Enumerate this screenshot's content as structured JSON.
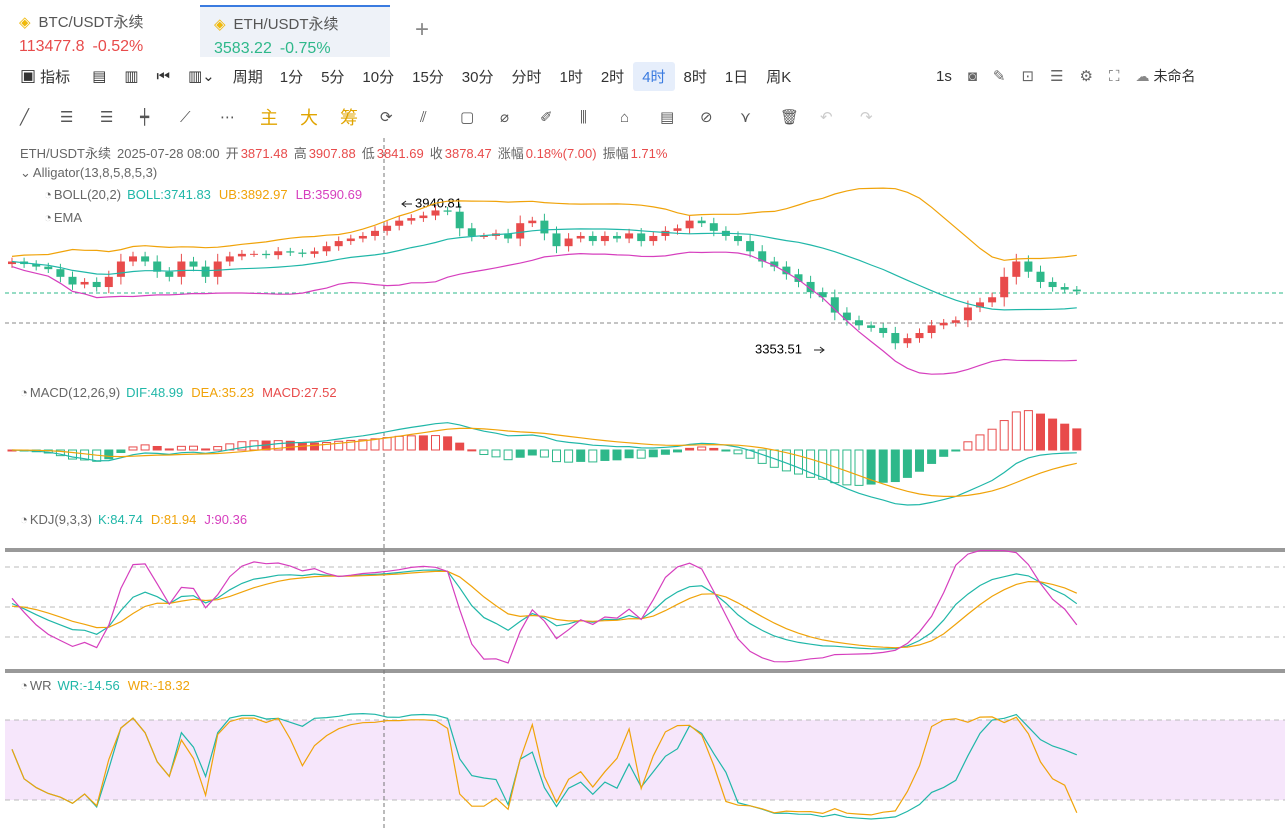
{
  "tabs": [
    {
      "symbol": "BTC/USDT永续",
      "price": 113477.8,
      "change": "-0.52%"
    },
    {
      "symbol": "ETH/USDT永续",
      "price": 3583.22,
      "change": "-0.75%"
    }
  ],
  "toolbar": {
    "indicator": "指标",
    "period": "周期",
    "intervals": [
      "1分",
      "5分",
      "10分",
      "15分",
      "30分",
      "分时",
      "1时",
      "2时",
      "4时",
      "8时",
      "1日",
      "周K"
    ],
    "active": "4时",
    "refresh": "1s",
    "layout_name": "未命名"
  },
  "draw_tools": {
    "main": "主",
    "big": "大",
    "chips": "筹"
  },
  "info": {
    "symbol": "ETH/USDT永续",
    "time": "2025-07-28 08:00",
    "fields": [
      {
        "label": "开",
        "value": 3871.48
      },
      {
        "label": "高",
        "value": 3907.88
      },
      {
        "label": "低",
        "value": 3841.69
      },
      {
        "label": "收",
        "value": 3878.47
      },
      {
        "label": "涨幅",
        "value": "0.18%(7.00)"
      },
      {
        "label": "振幅",
        "value": "1.71%"
      }
    ]
  },
  "indicators": [
    {
      "name": "Alligator(13,8,5,8,5,3)",
      "fields": []
    },
    {
      "name": "BOLL(20,2)",
      "fields": [
        {
          "label": "BOLL:",
          "value": 3741.83,
          "color": "#20b7a8"
        },
        {
          "label": "UB:",
          "value": 3892.97,
          "color": "#f0a30a"
        },
        {
          "label": "LB:",
          "value": 3590.69,
          "color": "#d63fbe"
        }
      ]
    },
    {
      "name": "EMA",
      "fields": []
    },
    {
      "name": "MACD(12,26,9)",
      "fields": [
        {
          "label": "DIF:",
          "value": 48.99,
          "color": "#20b7a8"
        },
        {
          "label": "DEA:",
          "value": 35.23,
          "color": "#f0a30a"
        },
        {
          "label": "MACD:",
          "value": 27.52,
          "color": "#e84b4b"
        }
      ]
    },
    {
      "name": "KDJ(9,3,3)",
      "fields": [
        {
          "label": "K:",
          "value": 84.74,
          "color": "#20b7a8"
        },
        {
          "label": "D:",
          "value": 81.94,
          "color": "#f0a30a"
        },
        {
          "label": "J:",
          "value": 90.36,
          "color": "#d63fbe"
        }
      ]
    },
    {
      "name": "WR",
      "fields": [
        {
          "label": "WR:",
          "value": -14.56,
          "color": "#20b7a8"
        },
        {
          "label": "WR:",
          "value": -18.32,
          "color": "#f0a30a"
        }
      ]
    }
  ],
  "annotations": {
    "high": 3940.81,
    "low": 3353.51
  },
  "candles": {
    "up_color": "#e84b4b",
    "down_color": "#2eb88a",
    "closes": [
      3700,
      3690,
      3680,
      3670,
      3640,
      3610,
      3620,
      3600,
      3640,
      3700,
      3720,
      3700,
      3660,
      3640,
      3700,
      3680,
      3640,
      3700,
      3720,
      3730,
      3730,
      3725,
      3740,
      3735,
      3730,
      3740,
      3760,
      3780,
      3790,
      3800,
      3820,
      3840,
      3860,
      3870,
      3880,
      3900,
      3895,
      3830,
      3800,
      3800,
      3810,
      3790,
      3850,
      3860,
      3810,
      3760,
      3790,
      3800,
      3780,
      3800,
      3790,
      3810,
      3780,
      3800,
      3820,
      3830,
      3860,
      3850,
      3820,
      3800,
      3780,
      3740,
      3700,
      3680,
      3650,
      3620,
      3580,
      3560,
      3500,
      3470,
      3450,
      3440,
      3420,
      3380,
      3400,
      3420,
      3450,
      3460,
      3470,
      3520,
      3540,
      3560,
      3640,
      3700,
      3660,
      3620,
      3600,
      3590,
      3583
    ]
  }
}
